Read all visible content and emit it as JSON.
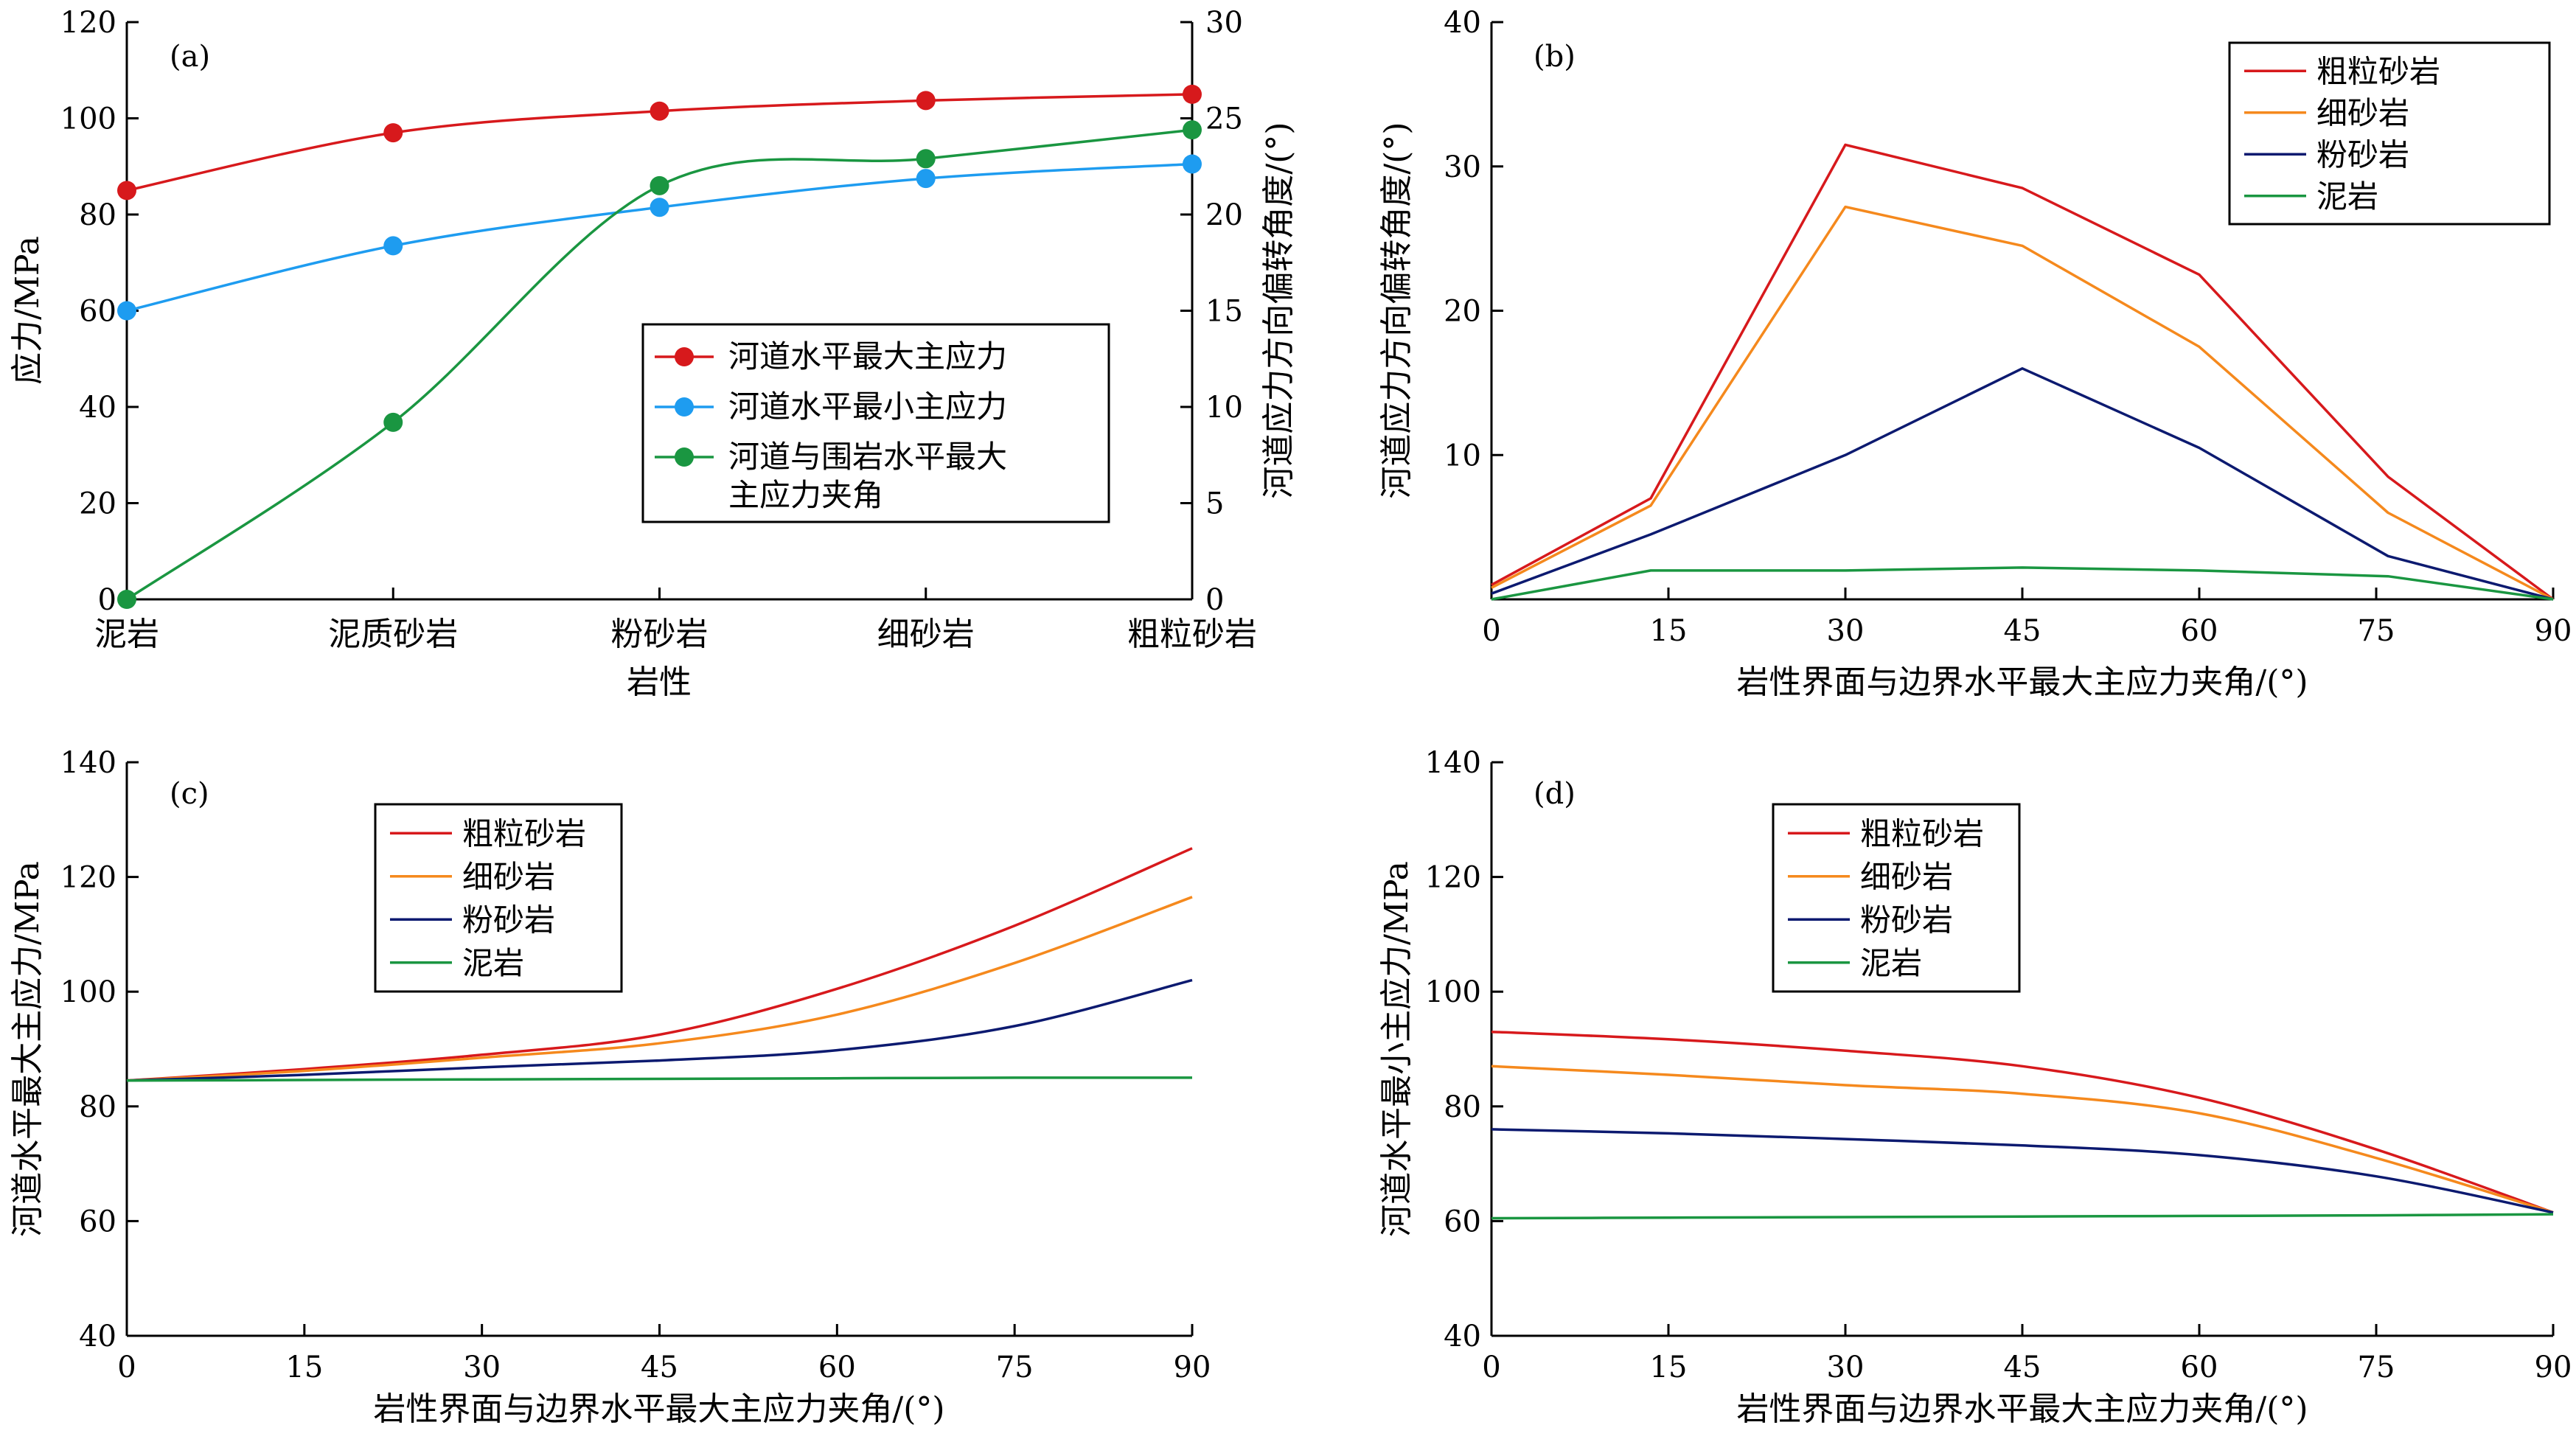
{
  "chart_data": [
    {
      "type": "line",
      "panel_label": "(a)",
      "xlabel": "岩性",
      "ylabel": "应力/MPa",
      "y2label": "河道应力方向偏转角度/(°)",
      "categories": [
        "泥岩",
        "泥质砂岩",
        "粉砂岩",
        "细砂岩",
        "粗粒砂岩"
      ],
      "ylim": [
        0,
        120
      ],
      "yticks": [
        0,
        20,
        40,
        60,
        80,
        100,
        120
      ],
      "y2lim": [
        0,
        30
      ],
      "y2ticks": [
        0,
        5,
        10,
        15,
        20,
        25,
        30
      ],
      "legend_position": "center-right",
      "series": [
        {
          "name": "河道水平最大主应力",
          "axis": "left",
          "color": "#d7191c",
          "marker": "circle",
          "values": [
            85,
            97,
            101.5,
            103.7,
            105
          ]
        },
        {
          "name": "河道水平最小主应力",
          "axis": "left",
          "color": "#1e9cf0",
          "marker": "circle",
          "values": [
            60,
            73.5,
            81.5,
            87.5,
            90.5
          ]
        },
        {
          "name": "河道与围岩水平最大主应力夹角",
          "axis": "right",
          "color": "#1a9641",
          "marker": "circle",
          "values": [
            0,
            9.2,
            21.5,
            22.9,
            24.4
          ]
        }
      ]
    },
    {
      "type": "line",
      "panel_label": "(b)",
      "xlabel": "岩性界面与边界水平最大主应力夹角/(°)",
      "ylabel": "河道应力方向偏转角度/(°)",
      "xlim": [
        0,
        90
      ],
      "xticks": [
        0,
        15,
        30,
        45,
        60,
        75,
        90
      ],
      "ylim": [
        0,
        40
      ],
      "yticks": [
        10,
        20,
        30,
        40
      ],
      "legend_position": "top-right",
      "series": [
        {
          "name": "粗粒砂岩",
          "color": "#d7191c",
          "x": [
            0,
            13.5,
            30,
            45,
            60,
            76,
            90
          ],
          "values": [
            1,
            7,
            31.5,
            28.5,
            22.5,
            8.5,
            0
          ]
        },
        {
          "name": "细砂岩",
          "color": "#f5891d",
          "x": [
            0,
            13.5,
            30,
            45,
            60,
            76,
            90
          ],
          "values": [
            0.8,
            6.5,
            27.2,
            24.5,
            17.5,
            6,
            0
          ]
        },
        {
          "name": "粉砂岩",
          "color": "#0c1a70",
          "x": [
            0,
            13.5,
            30,
            45,
            60,
            76,
            90
          ],
          "values": [
            0.4,
            4.5,
            10,
            16,
            10.5,
            3,
            0
          ]
        },
        {
          "name": "泥岩",
          "color": "#1a9641",
          "x": [
            0,
            13.5,
            30,
            45,
            60,
            76,
            90
          ],
          "values": [
            0,
            2,
            2,
            2.2,
            2,
            1.6,
            0
          ]
        }
      ]
    },
    {
      "type": "line",
      "panel_label": "(c)",
      "xlabel": "岩性界面与边界水平最大主应力夹角/(°)",
      "ylabel": "河道水平最大主应力/MPa",
      "xlim": [
        0,
        90
      ],
      "xticks": [
        0,
        15,
        30,
        45,
        60,
        75,
        90
      ],
      "ylim": [
        40,
        140
      ],
      "yticks": [
        40,
        60,
        80,
        100,
        120,
        140
      ],
      "legend_position": "top-left",
      "series": [
        {
          "name": "粗粒砂岩",
          "color": "#d7191c",
          "x": [
            0,
            15,
            30,
            45,
            60,
            75,
            90
          ],
          "values": [
            84.5,
            86.5,
            89,
            92.5,
            100.5,
            111.5,
            125
          ]
        },
        {
          "name": "细砂岩",
          "color": "#f5891d",
          "x": [
            0,
            15,
            30,
            45,
            60,
            75,
            90
          ],
          "values": [
            84.5,
            86.2,
            88.5,
            91,
            96,
            105,
            116.5
          ]
        },
        {
          "name": "粉砂岩",
          "color": "#0c1a70",
          "x": [
            0,
            15,
            30,
            45,
            60,
            75,
            90
          ],
          "values": [
            84.5,
            85.5,
            86.8,
            88,
            89.8,
            94,
            102
          ]
        },
        {
          "name": "泥岩",
          "color": "#1a9641",
          "x": [
            0,
            15,
            30,
            45,
            60,
            75,
            90
          ],
          "values": [
            84.5,
            84.6,
            84.7,
            84.8,
            84.9,
            85,
            85
          ]
        }
      ]
    },
    {
      "type": "line",
      "panel_label": "(d)",
      "xlabel": "岩性界面与边界水平最大主应力夹角/(°)",
      "ylabel": "河道水平最小主应力/MPa",
      "xlim": [
        0,
        90
      ],
      "xticks": [
        0,
        15,
        30,
        45,
        60,
        75,
        90
      ],
      "ylim": [
        40,
        140
      ],
      "yticks": [
        40,
        60,
        80,
        100,
        120,
        140
      ],
      "legend_position": "top-left",
      "series": [
        {
          "name": "粗粒砂岩",
          "color": "#d7191c",
          "x": [
            0,
            15,
            30,
            45,
            60,
            75,
            90
          ],
          "values": [
            93,
            91.7,
            89.7,
            87,
            81.5,
            72.5,
            61.5
          ]
        },
        {
          "name": "细砂岩",
          "color": "#f5891d",
          "x": [
            0,
            15,
            30,
            45,
            60,
            75,
            90
          ],
          "values": [
            87,
            85.5,
            83.7,
            82.2,
            78.8,
            71,
            61.5
          ]
        },
        {
          "name": "粉砂岩",
          "color": "#0c1a70",
          "x": [
            0,
            15,
            30,
            45,
            60,
            75,
            90
          ],
          "values": [
            76,
            75.3,
            74.3,
            73.2,
            71.5,
            67.8,
            61.5
          ]
        },
        {
          "name": "泥岩",
          "color": "#1a9641",
          "x": [
            0,
            15,
            30,
            45,
            60,
            75,
            90
          ],
          "values": [
            60.5,
            60.6,
            60.7,
            60.8,
            60.9,
            61,
            61.2
          ]
        }
      ]
    }
  ]
}
